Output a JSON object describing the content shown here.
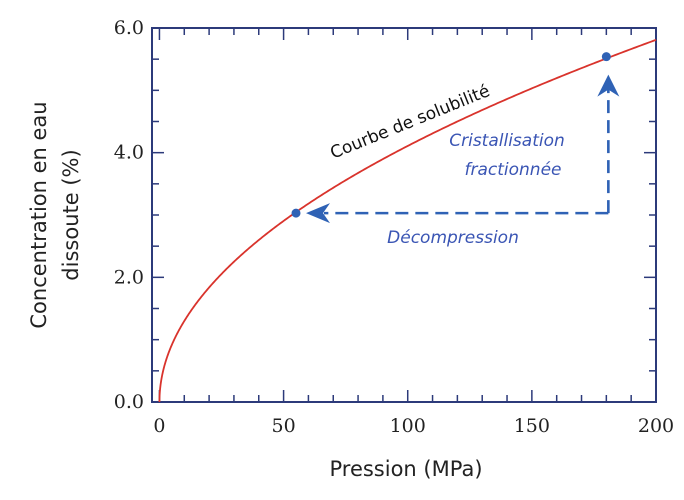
{
  "chart_data": {
    "type": "line",
    "title": "",
    "xlabel": "Pression (MPa)",
    "ylabel_lines": [
      "Concentration en eau",
      "dissoute (%)"
    ],
    "xlim": [
      -3,
      200
    ],
    "ylim": [
      0,
      6.0
    ],
    "xticks": [
      0,
      50,
      100,
      150,
      200
    ],
    "xtick_labels": [
      "0",
      "50",
      "100",
      "150",
      "200"
    ],
    "yticks": [
      0.0,
      2.0,
      4.0,
      6.0
    ],
    "ytick_labels": [
      "0.0",
      "2.0",
      "4.0",
      "6.0"
    ],
    "series": [
      {
        "name": "Courbe de solubilité",
        "color": "#d9332c",
        "model": "y = k * sqrt(x)",
        "k": 0.4108,
        "x_range": [
          0,
          200
        ]
      }
    ],
    "points": [
      {
        "name": "point-decompression",
        "x": 55,
        "y": 3.03,
        "color": "#2f62b5"
      },
      {
        "name": "point-cristallisation",
        "x": 180,
        "y": 5.54,
        "color": "#2f62b5"
      }
    ],
    "annotations": {
      "curve_label": "Courbe de solubilité",
      "cristallisation_line1": "Cristallisation",
      "cristallisation_line2": "fractionnée",
      "decompression": "Décompression"
    },
    "arrow_color": "#2f62b5",
    "grid": false
  }
}
